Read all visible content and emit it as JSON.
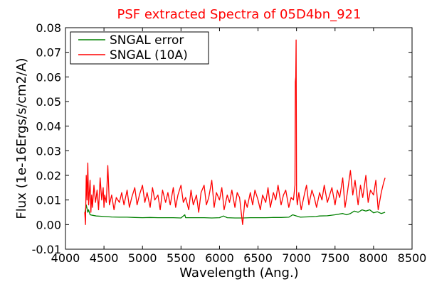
{
  "chart_data": {
    "type": "line",
    "title": "PSF extracted Spectra of 05D4bn_921",
    "title_color": "#ff0000",
    "xlabel": "Wavelength (Ang.)",
    "ylabel": "Flux (1e-16Ergs/s/cm2/A)",
    "xlim": [
      4000,
      8500
    ],
    "ylim": [
      -0.01,
      0.08
    ],
    "xticks": [
      4000,
      4500,
      5000,
      5500,
      6000,
      6500,
      7000,
      7500,
      8000,
      8500
    ],
    "xtick_labels": [
      "4000",
      "4500",
      "5000",
      "5500",
      "6000",
      "6500",
      "7000",
      "7500",
      "8000",
      "8500"
    ],
    "yticks": [
      -0.01,
      0.0,
      0.01,
      0.02,
      0.03,
      0.04,
      0.05,
      0.06,
      0.07,
      0.08
    ],
    "ytick_labels": [
      "-0.01",
      "0.00",
      "0.01",
      "0.02",
      "0.03",
      "0.04",
      "0.05",
      "0.06",
      "0.07",
      "0.08"
    ],
    "grid": false,
    "legend_position": "top-left",
    "series": [
      {
        "name": "SNGAL error",
        "color": "#008000",
        "x": [
          4250,
          4260,
          4270,
          4280,
          4290,
          4300,
          4320,
          4350,
          4400,
          4500,
          4600,
          4700,
          4800,
          4900,
          5000,
          5100,
          5200,
          5300,
          5400,
          5500,
          5550,
          5560,
          5600,
          5700,
          5800,
          5900,
          6000,
          6050,
          6100,
          6200,
          6300,
          6400,
          6500,
          6600,
          6700,
          6800,
          6900,
          6950,
          7000,
          7050,
          7100,
          7200,
          7250,
          7300,
          7400,
          7500,
          7600,
          7650,
          7700,
          7750,
          7800,
          7850,
          7900,
          7950,
          8000,
          8050,
          8100,
          8150
        ],
        "y": [
          0.0045,
          0.006,
          0.008,
          0.0065,
          0.005,
          0.006,
          0.004,
          0.0038,
          0.0035,
          0.0033,
          0.0031,
          0.003,
          0.003,
          0.0029,
          0.0028,
          0.0029,
          0.0028,
          0.0028,
          0.0028,
          0.0027,
          0.004,
          0.0028,
          0.0028,
          0.0028,
          0.0028,
          0.0027,
          0.0028,
          0.0035,
          0.0028,
          0.0027,
          0.0027,
          0.0028,
          0.0028,
          0.0028,
          0.0029,
          0.0029,
          0.003,
          0.004,
          0.0035,
          0.003,
          0.0031,
          0.0032,
          0.0033,
          0.0035,
          0.0036,
          0.004,
          0.0045,
          0.004,
          0.0045,
          0.0055,
          0.005,
          0.006,
          0.0055,
          0.006,
          0.0048,
          0.0052,
          0.0045,
          0.005
        ]
      },
      {
        "name": "SNGAL (10A)",
        "color": "#ff0000",
        "x": [
          4250,
          4260,
          4270,
          4280,
          4290,
          4300,
          4310,
          4320,
          4330,
          4340,
          4350,
          4370,
          4390,
          4410,
          4430,
          4450,
          4470,
          4490,
          4500,
          4510,
          4530,
          4550,
          4570,
          4600,
          4630,
          4660,
          4700,
          4730,
          4760,
          4800,
          4830,
          4860,
          4900,
          4930,
          4960,
          5000,
          5030,
          5060,
          5100,
          5130,
          5160,
          5200,
          5230,
          5260,
          5300,
          5330,
          5360,
          5400,
          5430,
          5460,
          5500,
          5530,
          5560,
          5600,
          5630,
          5660,
          5700,
          5730,
          5760,
          5800,
          5830,
          5860,
          5900,
          5930,
          5960,
          6000,
          6030,
          6060,
          6100,
          6130,
          6160,
          6200,
          6230,
          6260,
          6300,
          6330,
          6360,
          6400,
          6430,
          6460,
          6500,
          6530,
          6560,
          6600,
          6630,
          6660,
          6700,
          6730,
          6760,
          6800,
          6830,
          6860,
          6900,
          6930,
          6960,
          6980,
          6985,
          6990,
          6995,
          7000,
          7010,
          7030,
          7060,
          7100,
          7130,
          7160,
          7200,
          7230,
          7260,
          7300,
          7330,
          7360,
          7400,
          7430,
          7460,
          7500,
          7530,
          7560,
          7600,
          7630,
          7660,
          7700,
          7730,
          7760,
          7800,
          7830,
          7860,
          7900,
          7930,
          7960,
          8000,
          8030,
          8060,
          8100,
          8130,
          8150
        ],
        "y": [
          0.005,
          0.0,
          0.02,
          0.01,
          0.025,
          0.008,
          0.013,
          0.018,
          0.005,
          0.012,
          0.007,
          0.016,
          0.009,
          0.014,
          0.006,
          0.019,
          0.01,
          0.015,
          0.007,
          0.012,
          0.009,
          0.024,
          0.008,
          0.012,
          0.006,
          0.011,
          0.009,
          0.013,
          0.008,
          0.014,
          0.007,
          0.011,
          0.015,
          0.008,
          0.012,
          0.016,
          0.009,
          0.013,
          0.007,
          0.015,
          0.01,
          0.012,
          0.006,
          0.014,
          0.009,
          0.013,
          0.008,
          0.015,
          0.007,
          0.012,
          0.016,
          0.009,
          0.011,
          0.006,
          0.014,
          0.008,
          0.012,
          0.005,
          0.013,
          0.016,
          0.008,
          0.011,
          0.018,
          0.007,
          0.013,
          0.01,
          0.015,
          0.006,
          0.012,
          0.009,
          0.014,
          0.007,
          0.013,
          0.011,
          0.0,
          0.01,
          0.007,
          0.013,
          0.008,
          0.014,
          0.01,
          0.006,
          0.012,
          0.009,
          0.015,
          0.007,
          0.013,
          0.01,
          0.016,
          0.008,
          0.012,
          0.014,
          0.007,
          0.011,
          0.01,
          0.016,
          0.058,
          0.06,
          0.075,
          0.012,
          0.008,
          0.013,
          0.006,
          0.012,
          0.016,
          0.008,
          0.014,
          0.011,
          0.007,
          0.013,
          0.01,
          0.016,
          0.009,
          0.012,
          0.015,
          0.008,
          0.014,
          0.011,
          0.019,
          0.007,
          0.013,
          0.022,
          0.012,
          0.018,
          0.008,
          0.016,
          0.011,
          0.02,
          0.009,
          0.014,
          0.012,
          0.018,
          0.006,
          0.013,
          0.017,
          0.019
        ]
      }
    ]
  }
}
